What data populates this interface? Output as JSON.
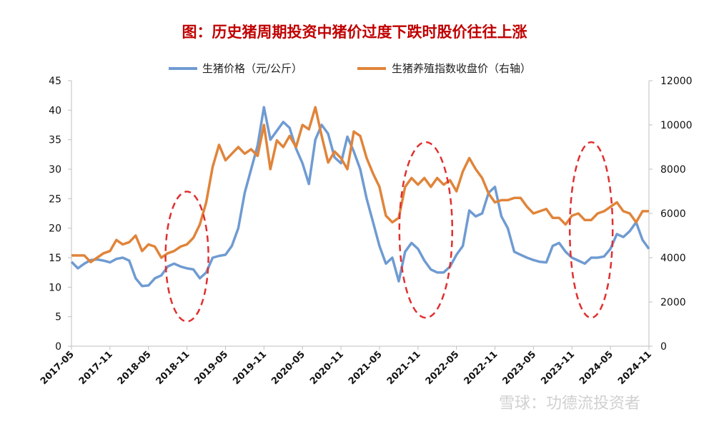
{
  "chart_data": {
    "type": "line",
    "title": "图：历史猪周期投资中猪价过度下跌时股价往往上涨",
    "legend": {
      "position": "top",
      "entries": [
        "生猪价格（元/公斤）",
        "生猪养殖指数收盘价（右轴）"
      ]
    },
    "x_ticks": [
      "2017-05",
      "2017-11",
      "2018-05",
      "2018-11",
      "2019-05",
      "2019-11",
      "2020-05",
      "2020-11",
      "2021-05",
      "2021-11",
      "2022-05",
      "2022-11",
      "2023-05",
      "2023-11",
      "2024-05",
      "2024-11"
    ],
    "y_left": {
      "ticks": [
        "0",
        "5",
        "10",
        "15",
        "20",
        "25",
        "30",
        "35",
        "40",
        "45"
      ],
      "ylim": [
        0,
        45
      ]
    },
    "y_right": {
      "ticks": [
        "0",
        "2000",
        "4000",
        "6000",
        "8000",
        "10000",
        "12000"
      ],
      "ylim": [
        0,
        12000
      ]
    },
    "series": [
      {
        "name": "生猪价格（元/公斤）",
        "axis": "left",
        "color": "#6f9bd2",
        "x": [
          "2017-05",
          "2017-06",
          "2017-07",
          "2017-08",
          "2017-09",
          "2017-10",
          "2017-11",
          "2017-12",
          "2018-01",
          "2018-02",
          "2018-03",
          "2018-04",
          "2018-05",
          "2018-06",
          "2018-07",
          "2018-08",
          "2018-09",
          "2018-10",
          "2018-11",
          "2018-12",
          "2019-01",
          "2019-02",
          "2019-03",
          "2019-04",
          "2019-05",
          "2019-06",
          "2019-07",
          "2019-08",
          "2019-09",
          "2019-10",
          "2019-11",
          "2019-12",
          "2020-01",
          "2020-02",
          "2020-03",
          "2020-04",
          "2020-05",
          "2020-06",
          "2020-07",
          "2020-08",
          "2020-09",
          "2020-10",
          "2020-11",
          "2020-12",
          "2021-01",
          "2021-02",
          "2021-03",
          "2021-04",
          "2021-05",
          "2021-06",
          "2021-07",
          "2021-08",
          "2021-09",
          "2021-10",
          "2021-11",
          "2021-12",
          "2022-01",
          "2022-02",
          "2022-03",
          "2022-04",
          "2022-05",
          "2022-06",
          "2022-07",
          "2022-08",
          "2022-09",
          "2022-10",
          "2022-11",
          "2022-12",
          "2023-01",
          "2023-02",
          "2023-03",
          "2023-04",
          "2023-05",
          "2023-06",
          "2023-07",
          "2023-08",
          "2023-09",
          "2023-10",
          "2023-11",
          "2023-12",
          "2024-01",
          "2024-02",
          "2024-03",
          "2024-04",
          "2024-05",
          "2024-06",
          "2024-07",
          "2024-08",
          "2024-09",
          "2024-10",
          "2024-11"
        ],
        "values": [
          14.3,
          13.2,
          14.0,
          14.6,
          14.7,
          14.5,
          14.2,
          14.8,
          15.0,
          14.5,
          11.5,
          10.2,
          10.3,
          11.5,
          12.0,
          13.5,
          14.0,
          13.5,
          13.2,
          13.0,
          11.5,
          12.5,
          15.0,
          15.3,
          15.5,
          17.0,
          20.0,
          26.0,
          30.0,
          34.0,
          40.5,
          35.0,
          36.5,
          38.0,
          37.0,
          33.5,
          31.0,
          27.5,
          35.0,
          37.5,
          36.0,
          32.0,
          31.0,
          35.5,
          33.0,
          30.0,
          25.0,
          21.0,
          17.0,
          14.0,
          15.0,
          11.0,
          16.0,
          17.5,
          16.5,
          14.5,
          13.0,
          12.5,
          12.5,
          13.5,
          15.5,
          17.0,
          23.0,
          22.0,
          22.5,
          26.0,
          27.0,
          22.0,
          20.0,
          16.0,
          15.5,
          15.0,
          14.6,
          14.3,
          14.2,
          17.0,
          17.5,
          16.0,
          15.0,
          14.5,
          14.0,
          15.0,
          15.0,
          15.2,
          16.5,
          19.0,
          18.5,
          19.5,
          21.0,
          18.0,
          16.5
        ]
      },
      {
        "name": "生猪养殖指数收盘价（右轴）",
        "axis": "right",
        "color": "#e0843a",
        "x": [
          "2017-05",
          "2017-06",
          "2017-07",
          "2017-08",
          "2017-09",
          "2017-10",
          "2017-11",
          "2017-12",
          "2018-01",
          "2018-02",
          "2018-03",
          "2018-04",
          "2018-05",
          "2018-06",
          "2018-07",
          "2018-08",
          "2018-09",
          "2018-10",
          "2018-11",
          "2018-12",
          "2019-01",
          "2019-02",
          "2019-03",
          "2019-04",
          "2019-05",
          "2019-06",
          "2019-07",
          "2019-08",
          "2019-09",
          "2019-10",
          "2019-11",
          "2019-12",
          "2020-01",
          "2020-02",
          "2020-03",
          "2020-04",
          "2020-05",
          "2020-06",
          "2020-07",
          "2020-08",
          "2020-09",
          "2020-10",
          "2020-11",
          "2020-12",
          "2021-01",
          "2021-02",
          "2021-03",
          "2021-04",
          "2021-05",
          "2021-06",
          "2021-07",
          "2021-08",
          "2021-09",
          "2021-10",
          "2021-11",
          "2021-12",
          "2022-01",
          "2022-02",
          "2022-03",
          "2022-04",
          "2022-05",
          "2022-06",
          "2022-07",
          "2022-08",
          "2022-09",
          "2022-10",
          "2022-11",
          "2022-12",
          "2023-01",
          "2023-02",
          "2023-03",
          "2023-04",
          "2023-05",
          "2023-06",
          "2023-07",
          "2023-08",
          "2023-09",
          "2023-10",
          "2023-11",
          "2023-12",
          "2024-01",
          "2024-02",
          "2024-03",
          "2024-04",
          "2024-05",
          "2024-06",
          "2024-07",
          "2024-08",
          "2024-09",
          "2024-10",
          "2024-11"
        ],
        "values": [
          4100,
          4100,
          4100,
          3800,
          4000,
          4200,
          4300,
          4800,
          4600,
          4700,
          5000,
          4300,
          4600,
          4500,
          4000,
          4200,
          4300,
          4500,
          4600,
          4900,
          5500,
          6500,
          8100,
          9100,
          8400,
          8700,
          9000,
          8700,
          8900,
          8600,
          10000,
          8000,
          9300,
          9000,
          9500,
          9000,
          10000,
          9800,
          10800,
          9500,
          8300,
          8800,
          8500,
          8000,
          9700,
          9500,
          8500,
          7800,
          7200,
          5900,
          5600,
          5800,
          7200,
          7600,
          7300,
          7600,
          7200,
          7600,
          7300,
          7500,
          7000,
          7900,
          8500,
          8000,
          7600,
          6900,
          6500,
          6600,
          6600,
          6700,
          6700,
          6300,
          6000,
          6100,
          6200,
          5800,
          5800,
          5500,
          5900,
          6000,
          5700,
          5700,
          6000,
          6100,
          6300,
          6500,
          6100,
          6000,
          5600,
          6100,
          6100
        ]
      }
    ],
    "annotations": [
      {
        "shape": "dashed-ellipse",
        "color": "#e03030",
        "around": "2018-11"
      },
      {
        "shape": "dashed-ellipse",
        "color": "#e03030",
        "around": "2021-11"
      },
      {
        "shape": "dashed-ellipse",
        "color": "#e03030",
        "around": "2024-02"
      }
    ],
    "grid": false
  },
  "watermark": "雪球：功德流投资者"
}
